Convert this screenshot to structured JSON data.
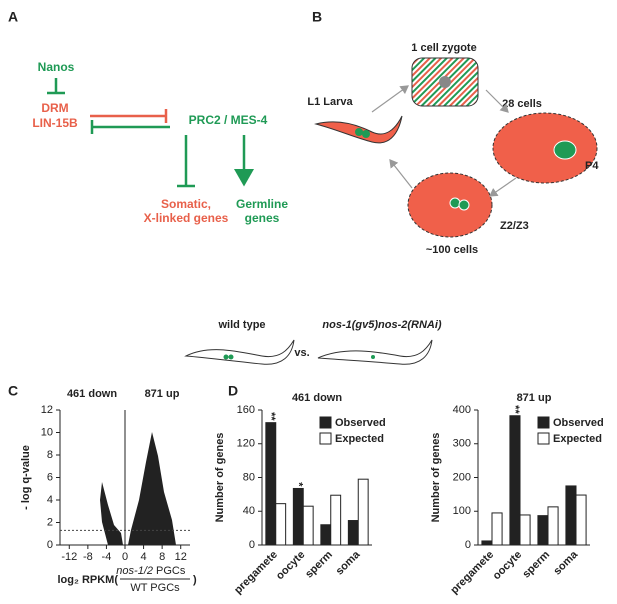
{
  "panel_a": {
    "label": "A",
    "nanos": "Nanos",
    "drm": "DRM",
    "lin15b": "LIN-15B",
    "prc2": "PRC2 / MES-4",
    "somatic": [
      "Somatic,",
      "X-linked genes"
    ],
    "germline": [
      "Germline",
      "genes"
    ]
  },
  "panel_b": {
    "label": "B",
    "zygote": "1 cell zygote",
    "cells28": "28 cells",
    "p4": "P4",
    "z2z3": "Z2/Z3",
    "cells100": "~100 cells",
    "larva": "L1 Larva"
  },
  "middle": {
    "wild_type": "wild type",
    "vs": "vs.",
    "mutant": "nos-1(gv5)nos-2(RNAi)"
  },
  "chart_data": [
    {
      "type": "scatter",
      "label": "C",
      "annotations": [
        "461 down",
        "871 up"
      ],
      "ylabel": "- log q-value",
      "xlabel_prefix": "log₂ RPKM(",
      "xlabel_num_italic": "nos-1/2",
      "xlabel_num": "PGCs",
      "xlabel_den": "WT PGCs",
      "xlabel_suffix": ")",
      "xlim": [
        -14,
        14
      ],
      "ylim": [
        0,
        12
      ],
      "xticks": [
        -12,
        -8,
        -4,
        0,
        4,
        8,
        12
      ],
      "yticks": [
        0,
        2,
        4,
        6,
        8,
        10,
        12
      ],
      "threshold": 1.3
    },
    {
      "type": "bar",
      "label": "D",
      "title": "461 down",
      "ylabel": "Number of genes",
      "categories": [
        "pregamete",
        "oocyte",
        "sperm",
        "soma"
      ],
      "series": [
        {
          "name": "Observed",
          "color": "#222222",
          "values": [
            145,
            67,
            24,
            29
          ]
        },
        {
          "name": "Expected",
          "color": "#ffffff",
          "values": [
            49,
            46,
            59,
            78
          ]
        }
      ],
      "significance": [
        "**",
        "*",
        null,
        null
      ],
      "ylim": [
        0,
        160
      ],
      "yticks": [
        0,
        40,
        80,
        120,
        160
      ]
    },
    {
      "type": "bar",
      "title": "871 up",
      "ylabel": "Number of genes",
      "categories": [
        "pregamete",
        "oocyte",
        "sperm",
        "soma"
      ],
      "series": [
        {
          "name": "Observed",
          "color": "#222222",
          "values": [
            12,
            383,
            87,
            175
          ]
        },
        {
          "name": "Expected",
          "color": "#ffffff",
          "values": [
            95,
            89,
            113,
            148
          ]
        }
      ],
      "significance": [
        null,
        "**",
        null,
        null
      ],
      "ylim": [
        0,
        400
      ],
      "yticks": [
        0,
        100,
        200,
        300,
        400
      ]
    }
  ]
}
